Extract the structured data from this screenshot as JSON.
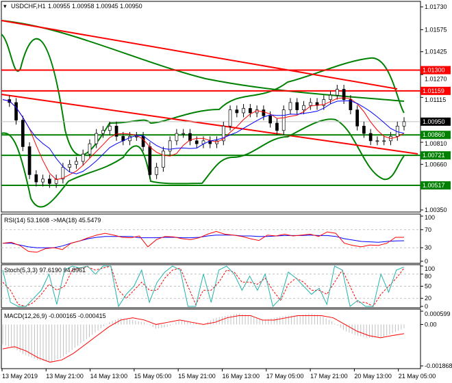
{
  "header": {
    "symbol": "USDCHF,H1",
    "ohlc": "1.00955 1.00958 1.00945 1.00950"
  },
  "colors": {
    "up_line": "#ff0000",
    "level_green": "#008000",
    "bands": "#008000",
    "rsi": "#ff0000",
    "rsi_ma": "#0000ff",
    "stoch_main": "#20b2aa",
    "stoch_signal": "#ff0000",
    "macd": "#ff0000",
    "hist": "#c0c0c0"
  },
  "chart_data": [
    {
      "type": "line",
      "name": "price",
      "ylim": [
        1.0035,
        1.0173
      ],
      "y_ticks": [
        "1.01730",
        "1.01575",
        "1.01425",
        "1.01270",
        "1.01115",
        "1.00810",
        "1.00660",
        "1.00350"
      ],
      "closes": [
        1.011,
        1.0108,
        1.0096,
        1.0078,
        1.0059,
        1.0054,
        1.0056,
        1.0053,
        1.0056,
        1.0064,
        1.0066,
        1.0068,
        1.0073,
        1.008,
        1.0087,
        1.0089,
        1.0092,
        1.0085,
        1.0082,
        1.0085,
        1.0085,
        1.0078,
        1.0059,
        1.0064,
        1.0075,
        1.0082,
        1.0087,
        1.0087,
        1.0082,
        1.008,
        1.0082,
        1.008,
        1.0082,
        1.0092,
        1.0103,
        1.0101,
        1.0104,
        1.0101,
        1.0103,
        1.0099,
        1.0094,
        1.0089,
        1.0103,
        1.0108,
        1.0103,
        1.0106,
        1.0108,
        1.0106,
        1.011,
        1.0113,
        1.0117,
        1.011,
        1.0103,
        1.0092,
        1.0087,
        1.0082,
        1.0082,
        1.0082,
        1.0085,
        1.0092,
        1.0095
      ],
      "levels": [
        {
          "label": "1.01300",
          "value": 1.013,
          "color": "#ff0000"
        },
        {
          "label": "1.01159",
          "value": 1.01159,
          "color": "#ff0000"
        },
        {
          "label": "1.00950",
          "value": 1.0095,
          "color": "#000000"
        },
        {
          "label": "1.00860",
          "value": 1.0086,
          "color": "#008000"
        },
        {
          "label": "1.00721",
          "value": 1.00721,
          "color": "#008000"
        },
        {
          "label": "1.00517",
          "value": 1.00517,
          "color": "#008000"
        }
      ]
    },
    {
      "type": "line",
      "name": "rsi",
      "title": "RSI(14) 53.1608  ->MA(18) 45.5479",
      "ylim": [
        0,
        100
      ],
      "y_ticks": [
        "100",
        "70",
        "30",
        "0"
      ],
      "rsi": [
        40,
        42,
        35,
        22,
        20,
        28,
        30,
        26,
        40,
        45,
        52,
        58,
        62,
        58,
        53,
        52,
        56,
        32,
        48,
        55,
        54,
        50,
        48,
        52,
        60,
        66,
        60,
        58,
        55,
        50,
        46,
        58,
        56,
        60,
        56,
        58,
        60,
        55,
        65,
        62,
        40,
        35,
        32,
        36,
        35,
        40,
        53,
        53
      ],
      "ma": [
        40,
        40,
        36,
        32,
        30,
        30,
        30,
        34,
        40,
        45,
        50,
        53,
        55,
        55,
        55,
        55,
        52,
        52,
        52,
        53,
        53,
        52,
        52,
        53,
        56,
        58,
        58,
        58,
        56,
        56,
        55,
        55,
        56,
        57,
        57,
        57,
        58,
        57,
        57,
        55,
        50,
        47,
        44,
        43,
        42,
        44,
        45,
        45.5
      ]
    },
    {
      "type": "line",
      "name": "stoch",
      "title": "Stoch(5,3,3) 97.6190 94.8961",
      "ylim": [
        0,
        100
      ],
      "y_ticks": [
        "100",
        "80",
        "50",
        "20",
        "0"
      ],
      "main": [
        90,
        10,
        0,
        0,
        20,
        40,
        80,
        5,
        90,
        100,
        95,
        100,
        80,
        100,
        100,
        0,
        30,
        50,
        90,
        10,
        60,
        85,
        100,
        90,
        0,
        0,
        80,
        10,
        90,
        100,
        80,
        40,
        75,
        40,
        80,
        0,
        20,
        85,
        70,
        50,
        30,
        45,
        5,
        100,
        90,
        0,
        15,
        0,
        0,
        80,
        35,
        90,
        97.6
      ],
      "signal": [
        60,
        40,
        5,
        0,
        10,
        30,
        55,
        40,
        50,
        90,
        95,
        98,
        90,
        95,
        100,
        40,
        20,
        40,
        60,
        40,
        40,
        70,
        90,
        95,
        50,
        5,
        40,
        40,
        60,
        90,
        85,
        60,
        60,
        55,
        70,
        40,
        15,
        55,
        70,
        60,
        40,
        40,
        30,
        60,
        90,
        50,
        10,
        10,
        0,
        30,
        50,
        70,
        94.9
      ]
    },
    {
      "type": "line",
      "name": "macd",
      "title": "MACD(12,26,9) -0.000165 -0.000415",
      "ylim": [
        -0.001868,
        0.000599
      ],
      "y_ticks": [
        "0.000599",
        "0.00",
        "-0.001868"
      ],
      "hist": [
        -0.0009,
        -0.0011,
        -0.0014,
        -0.0016,
        -0.0017,
        -0.0015,
        -0.0011,
        -0.0007,
        -0.0003,
        0.0001,
        0.0003,
        0.0002,
        0.0001,
        -0.0002,
        -0.0001,
        0.0002,
        0.0001,
        0.0,
        0.0003,
        0.0004,
        0.0005,
        0.0004,
        0.0002,
        0.0003,
        0.0004,
        0.0004,
        0.0005,
        0.0004,
        0.0001,
        -0.0003,
        -0.0005,
        -0.0006,
        -0.0006,
        -0.0004,
        -0.000165
      ],
      "signal": [
        -0.0011,
        -0.001,
        -0.0012,
        -0.0015,
        -0.0017,
        -0.0016,
        -0.0013,
        -0.0009,
        -0.0005,
        -0.0001,
        0.0002,
        0.0003,
        0.0002,
        0.0,
        0.0001,
        0.0002,
        0.0001,
        0.0,
        0.0001,
        0.0003,
        0.0004,
        0.0004,
        0.0002,
        0.0002,
        0.0003,
        0.0004,
        0.0004,
        0.0004,
        0.0003,
        0.0,
        -0.0003,
        -0.0005,
        -0.0006,
        -0.0005,
        -0.000415
      ]
    }
  ],
  "x_axis": {
    "labels": [
      "13 May 2019",
      "13 May 21:00",
      "14 May 13:00",
      "15 May 05:00",
      "15 May 21:00",
      "16 May 13:00",
      "17 May 05:00",
      "17 May 21:00",
      "20 May 13:00",
      "21 May 05:00"
    ]
  }
}
